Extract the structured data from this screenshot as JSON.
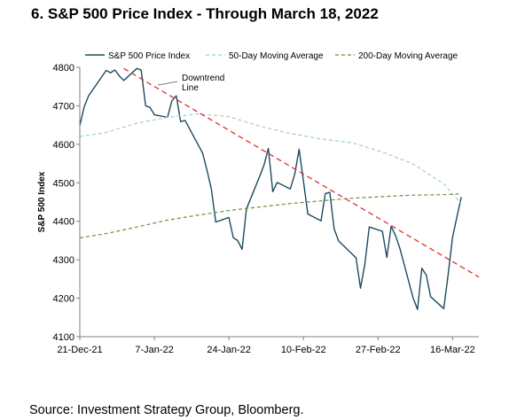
{
  "header": {
    "title": "6. S&P 500 Price Index - Through March 18, 2022"
  },
  "footer": {
    "source": "Source: Investment Strategy Group, Bloomberg."
  },
  "chart_data": {
    "type": "line",
    "title": "6. S&P 500 Price Index - Through March 18, 2022",
    "xlabel": "",
    "ylabel": "S&P 500 Index",
    "ylim": [
      4100,
      4800
    ],
    "yticks": [
      4100,
      4200,
      4300,
      4400,
      4500,
      4600,
      4700,
      4800
    ],
    "xticks": [
      "21-Dec-21",
      "7-Jan-22",
      "24-Jan-22",
      "10-Feb-22",
      "27-Feb-22",
      "16-Mar-22"
    ],
    "grid": false,
    "legend_position": "top",
    "series": [
      {
        "name": "S&P 500 Price Index",
        "color": "#1d4a5f",
        "style": "solid",
        "x": [
          "2021-12-21",
          "2021-12-22",
          "2021-12-23",
          "2021-12-27",
          "2021-12-28",
          "2021-12-29",
          "2021-12-30",
          "2021-12-31",
          "2022-01-03",
          "2022-01-04",
          "2022-01-05",
          "2022-01-06",
          "2022-01-07",
          "2022-01-10",
          "2022-01-11",
          "2022-01-12",
          "2022-01-13",
          "2022-01-14",
          "2022-01-18",
          "2022-01-19",
          "2022-01-20",
          "2022-01-21",
          "2022-01-24",
          "2022-01-25",
          "2022-01-26",
          "2022-01-27",
          "2022-01-28",
          "2022-01-31",
          "2022-02-01",
          "2022-02-02",
          "2022-02-03",
          "2022-02-04",
          "2022-02-07",
          "2022-02-08",
          "2022-02-09",
          "2022-02-10",
          "2022-02-11",
          "2022-02-14",
          "2022-02-15",
          "2022-02-16",
          "2022-02-17",
          "2022-02-18",
          "2022-02-22",
          "2022-02-23",
          "2022-02-24",
          "2022-02-25",
          "2022-02-28",
          "2022-03-01",
          "2022-03-02",
          "2022-03-03",
          "2022-03-04",
          "2022-03-07",
          "2022-03-08",
          "2022-03-09",
          "2022-03-10",
          "2022-03-11",
          "2022-03-14",
          "2022-03-15",
          "2022-03-16",
          "2022-03-17",
          "2022-03-18"
        ],
        "values": [
          4649,
          4697,
          4726,
          4792,
          4786,
          4793,
          4778,
          4766,
          4797,
          4793,
          4700,
          4696,
          4677,
          4670,
          4713,
          4726,
          4659,
          4662,
          4577,
          4533,
          4483,
          4398,
          4410,
          4357,
          4350,
          4327,
          4432,
          4516,
          4546,
          4589,
          4477,
          4501,
          4484,
          4522,
          4587,
          4504,
          4419,
          4401,
          4472,
          4475,
          4380,
          4349,
          4305,
          4226,
          4288,
          4385,
          4374,
          4306,
          4387,
          4363,
          4329,
          4201,
          4171,
          4278,
          4260,
          4204,
          4173,
          4262,
          4358,
          4412,
          4463
        ]
      },
      {
        "name": "50-Day Moving Average",
        "color": "#9fcfc8",
        "style": "dashed",
        "x": [
          "2021-12-21",
          "2021-12-27",
          "2022-01-03",
          "2022-01-10",
          "2022-01-17",
          "2022-01-24",
          "2022-01-31",
          "2022-02-07",
          "2022-02-14",
          "2022-02-21",
          "2022-02-28",
          "2022-03-07",
          "2022-03-14",
          "2022-03-18"
        ],
        "values": [
          4620,
          4631,
          4655,
          4670,
          4679,
          4672,
          4647,
          4628,
          4614,
          4604,
          4580,
          4549,
          4497,
          4445
        ]
      },
      {
        "name": "200-Day Moving Average",
        "color": "#6b8e3e",
        "style": "dashed",
        "x": [
          "2021-12-21",
          "2021-12-27",
          "2022-01-03",
          "2022-01-10",
          "2022-01-17",
          "2022-01-24",
          "2022-01-31",
          "2022-02-07",
          "2022-02-14",
          "2022-02-21",
          "2022-02-28",
          "2022-03-07",
          "2022-03-14",
          "2022-03-18"
        ],
        "values": [
          4357,
          4368,
          4385,
          4403,
          4416,
          4428,
          4437,
          4446,
          4453,
          4460,
          4464,
          4468,
          4469,
          4471
        ]
      },
      {
        "name": "Downtrend",
        "color": "#e03030",
        "style": "dashed",
        "x": [
          "2021-12-31",
          "2022-03-22"
        ],
        "values": [
          4797,
          4255
        ]
      }
    ],
    "annotations": [
      {
        "text": "Downtrend Line",
        "lines": [
          "Downtrend",
          "Line"
        ]
      }
    ]
  }
}
